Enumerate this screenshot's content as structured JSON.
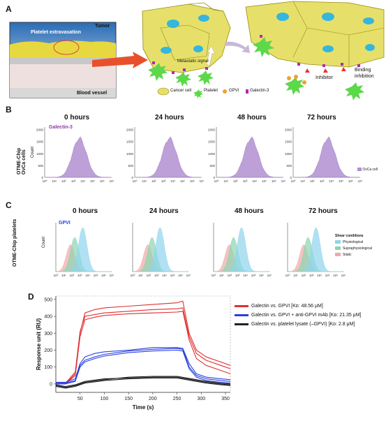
{
  "panels": {
    "A": {
      "letter": "A",
      "inset": {
        "title": "Platelet extravasation",
        "tumor": "Tumor",
        "vessel": "Blood vessel"
      },
      "metastatic_signal": "Metastatic signal",
      "inhibitor": "Inhibitor",
      "binding_inhibition": "Binding\ninhibition",
      "binding_inhibition_1": "Binding",
      "binding_inhibition_2": "inhibition",
      "legend": [
        {
          "label": "Cancer cell",
          "icon": "cancer-cell-icon"
        },
        {
          "label": "Platelet",
          "icon": "platelet-icon"
        },
        {
          "label": "GPVI",
          "icon": "gpvi-icon"
        },
        {
          "label": "Galectin-3",
          "icon": "galectin-icon"
        }
      ]
    },
    "B": {
      "letter": "B",
      "row_label_1": "OTME-Chip",
      "row_label_2": "OvCa cells",
      "marker": "Galectin-3",
      "count_label": "Count",
      "legend": "OvCa cell",
      "times": [
        "0 hours",
        "24 hours",
        "48 hours",
        "72 hours"
      ],
      "yticks": [
        "0",
        "500",
        "1000",
        "1500",
        "2000"
      ],
      "xticks": [
        "10⁰",
        "10¹",
        "10²",
        "10³",
        "10⁴",
        "10⁵",
        "10⁶",
        "10⁷"
      ]
    },
    "C": {
      "letter": "C",
      "row_label": "OTME-Chip platelets",
      "marker": "GPVI",
      "count_label": "Count",
      "times": [
        "0 hours",
        "24 hours",
        "48 hours",
        "72 hours"
      ],
      "legend_title": "Shear conditions",
      "legend": [
        "Physiological",
        "Supraphysiological",
        "Static"
      ],
      "xticks": [
        "10⁰",
        "10¹",
        "10²",
        "10³",
        "10⁴",
        "10⁵",
        "10⁶",
        "10⁷"
      ]
    },
    "D": {
      "letter": "D",
      "legend": [
        {
          "label": "Galectin vs. GPVI [Kᴅ: 48.56 μM]",
          "color": "#e03030"
        },
        {
          "label": "Galectin vs. GPVI + anti-GPVI mAb [Kᴅ: 21.35 μM]",
          "color": "#2a3fe0"
        },
        {
          "label": "Galectin vs. platelet lysate (–GPVI) [Kᴅ: 2.8 μM]",
          "color": "#222222"
        }
      ]
    }
  },
  "chart_data": {
    "type": "line",
    "xlabel": "Time (s)",
    "ylabel": "Response unit (RU)",
    "xlim": [
      0,
      360
    ],
    "ylim": [
      -50,
      520
    ],
    "xticks": [
      50,
      100,
      150,
      200,
      250,
      300,
      350
    ],
    "yticks": [
      0,
      100,
      200,
      300,
      400,
      500
    ],
    "series": [
      {
        "name": "Galectin vs. GPVI",
        "color": "#e03030",
        "x": [
          0,
          20,
          40,
          50,
          60,
          80,
          100,
          150,
          200,
          250,
          262,
          275,
          290,
          310,
          340,
          360
        ],
        "y": [
          0,
          0,
          60,
          300,
          420,
          440,
          450,
          460,
          470,
          480,
          490,
          300,
          200,
          160,
          130,
          110
        ]
      },
      {
        "name": "Galectin vs. GPVI",
        "color": "#e03030",
        "x": [
          0,
          20,
          40,
          50,
          60,
          80,
          100,
          150,
          200,
          250,
          262,
          275,
          290,
          310,
          340,
          360
        ],
        "y": [
          5,
          5,
          70,
          310,
          400,
          410,
          420,
          430,
          440,
          445,
          450,
          280,
          180,
          140,
          110,
          90
        ]
      },
      {
        "name": "Galectin vs. GPVI",
        "color": "#e03030",
        "x": [
          0,
          20,
          40,
          50,
          60,
          80,
          100,
          150,
          200,
          250,
          262,
          275,
          290,
          310,
          340,
          360
        ],
        "y": [
          0,
          0,
          50,
          280,
          380,
          395,
          405,
          415,
          420,
          425,
          430,
          260,
          150,
          110,
          80,
          60
        ]
      },
      {
        "name": "Galectin vs. GPVI + anti-GPVI mAb",
        "color": "#2a3fe0",
        "x": [
          0,
          20,
          40,
          50,
          60,
          80,
          100,
          150,
          200,
          250,
          262,
          275,
          290,
          310,
          340,
          360
        ],
        "y": [
          10,
          10,
          30,
          120,
          160,
          180,
          190,
          200,
          215,
          215,
          210,
          120,
          60,
          40,
          30,
          25
        ]
      },
      {
        "name": "Galectin vs. GPVI + anti-GPVI mAb",
        "color": "#2a3fe0",
        "x": [
          0,
          20,
          40,
          50,
          60,
          80,
          100,
          150,
          200,
          250,
          262,
          275,
          290,
          310,
          340,
          360
        ],
        "y": [
          5,
          5,
          20,
          110,
          140,
          160,
          175,
          195,
          205,
          210,
          205,
          100,
          50,
          30,
          20,
          15
        ]
      },
      {
        "name": "Galectin vs. GPVI + anti-GPVI mAb",
        "color": "#2a3fe0",
        "x": [
          0,
          20,
          40,
          50,
          60,
          80,
          100,
          150,
          200,
          250,
          262,
          275,
          290,
          310,
          340,
          360
        ],
        "y": [
          0,
          0,
          15,
          100,
          130,
          150,
          165,
          185,
          195,
          200,
          195,
          90,
          40,
          20,
          10,
          5
        ]
      },
      {
        "name": "Galectin vs. platelet lysate (–GPVI)",
        "color": "#222222",
        "x": [
          0,
          20,
          40,
          60,
          100,
          150,
          200,
          250,
          280,
          310,
          340,
          360
        ],
        "y": [
          -10,
          -20,
          -10,
          10,
          25,
          40,
          45,
          45,
          30,
          15,
          5,
          0
        ]
      },
      {
        "name": "Galectin vs. platelet lysate (–GPVI)",
        "color": "#222222",
        "x": [
          0,
          20,
          40,
          60,
          100,
          150,
          200,
          250,
          280,
          310,
          340,
          360
        ],
        "y": [
          -5,
          -15,
          -5,
          15,
          30,
          35,
          40,
          40,
          25,
          10,
          0,
          -5
        ]
      },
      {
        "name": "Galectin vs. platelet lysate (–GPVI)",
        "color": "#222222",
        "x": [
          0,
          20,
          40,
          60,
          100,
          150,
          200,
          250,
          280,
          310,
          340,
          360
        ],
        "y": [
          -15,
          -25,
          -15,
          5,
          20,
          30,
          35,
          35,
          20,
          5,
          -5,
          -10
        ]
      }
    ]
  }
}
